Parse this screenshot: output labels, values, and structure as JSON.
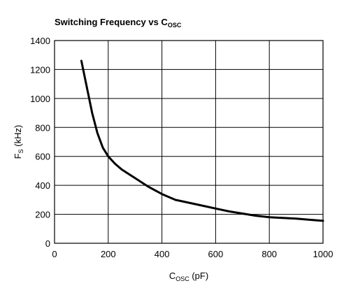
{
  "chart_data": {
    "type": "line",
    "title": "Switching Frequency vs C",
    "title_subscript": "OSC",
    "xlabel": "C",
    "xlabel_subscript": "OSC",
    "xlabel_suffix": " (pF)",
    "ylabel": "F",
    "ylabel_subscript": "S",
    "ylabel_suffix": " (kHz)",
    "xlim": [
      0,
      1000
    ],
    "ylim": [
      0,
      1400
    ],
    "x_ticks": [
      0,
      200,
      400,
      600,
      800,
      1000
    ],
    "y_ticks": [
      0,
      200,
      400,
      600,
      800,
      1000,
      1200,
      1400
    ],
    "grid": true,
    "series": [
      {
        "color": "#000000",
        "x": [
          100,
          120,
          140,
          160,
          180,
          200,
          225,
          250,
          275,
          300,
          350,
          400,
          450,
          500,
          550,
          600,
          650,
          700,
          750,
          800,
          850,
          900,
          950,
          1000
        ],
        "y": [
          1260,
          1080,
          900,
          760,
          660,
          600,
          550,
          510,
          480,
          450,
          390,
          340,
          300,
          280,
          260,
          240,
          220,
          205,
          190,
          180,
          175,
          170,
          162,
          155
        ]
      }
    ]
  }
}
